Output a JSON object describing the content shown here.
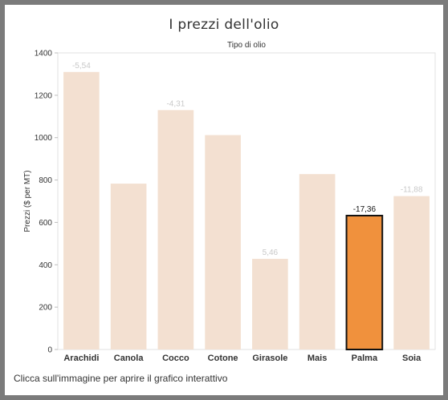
{
  "title": "I prezzi dell'olio",
  "caption": "Clicca sull'immagine per aprire il grafico interattivo",
  "colors": {
    "bar": "#f3e0d1",
    "highlight": "#f0913d",
    "highlight_border": "#111111",
    "label": "#c8c8c8",
    "highlight_label": "#111111",
    "gridline": "#e5e5e5"
  },
  "chart_data": {
    "type": "bar",
    "title": "I prezzi dell'olio",
    "xlabel": "Tipo di olio",
    "ylabel": "Prezzi ($ per MT)",
    "ylim": [
      0,
      1400
    ],
    "yticks": [
      0,
      200,
      400,
      600,
      800,
      1000,
      1200,
      1400
    ],
    "categories": [
      "Arachidi",
      "Canola",
      "Cocco",
      "Cotone",
      "Girasole",
      "Mais",
      "Palma",
      "Soia"
    ],
    "values": [
      1310,
      783,
      1130,
      1012,
      428,
      828,
      632,
      724
    ],
    "labels": [
      "-5,54",
      "",
      "-4,31",
      "",
      "5,46",
      "",
      "-17,36",
      "-11,88"
    ],
    "highlight_index": 6
  }
}
